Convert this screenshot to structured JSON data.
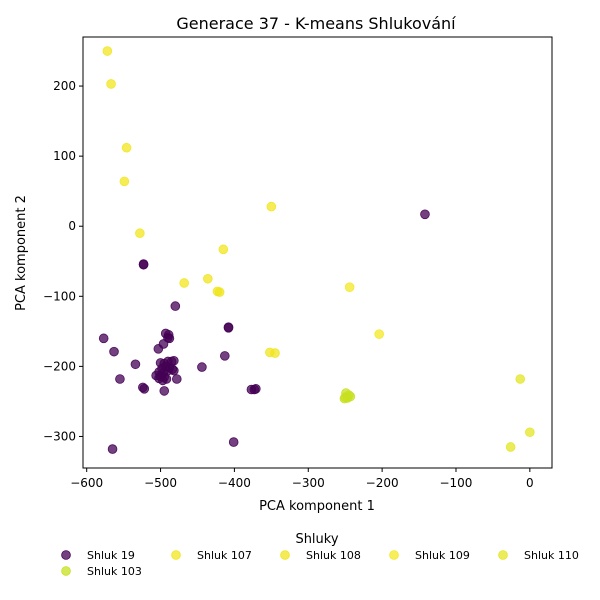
{
  "chart_data": {
    "type": "scatter",
    "title": "Generace 37 - K-means Shlukování",
    "xlabel": "PCA komponent 1",
    "ylabel": "PCA komponent 2",
    "xlim": [
      -605,
      30
    ],
    "ylim": [
      -345,
      270
    ],
    "xticks": [
      -600,
      -500,
      -400,
      -300,
      -200,
      -100,
      0
    ],
    "yticks": [
      -300,
      -200,
      -100,
      0,
      100,
      200
    ],
    "legend_title": "Shluky",
    "legend_position": "bottom",
    "series": [
      {
        "name": "Shluk 19",
        "color": "#440154",
        "points": [
          [
            -523,
            -55
          ],
          [
            -523,
            -54
          ],
          [
            -480,
            -114
          ],
          [
            -408,
            -145
          ],
          [
            -408,
            -144
          ],
          [
            -142,
            17
          ],
          [
            -577,
            -160
          ],
          [
            -563,
            -179
          ],
          [
            -503,
            -175
          ],
          [
            -496,
            -168
          ],
          [
            -493,
            -153
          ],
          [
            -489,
            -155
          ],
          [
            -490,
            -159
          ],
          [
            -488,
            -160
          ],
          [
            -413,
            -185
          ],
          [
            -534,
            -197
          ],
          [
            -555,
            -218
          ],
          [
            -444,
            -201
          ],
          [
            -500,
            -195
          ],
          [
            -495,
            -196
          ],
          [
            -490,
            -193
          ],
          [
            -485,
            -193
          ],
          [
            -482,
            -192
          ],
          [
            -498,
            -203
          ],
          [
            -493,
            -200
          ],
          [
            -488,
            -202
          ],
          [
            -502,
            -208
          ],
          [
            -496,
            -209
          ],
          [
            -490,
            -206
          ],
          [
            -484,
            -204
          ],
          [
            -482,
            -206
          ],
          [
            -506,
            -213
          ],
          [
            -500,
            -214
          ],
          [
            -495,
            -215
          ],
          [
            -492,
            -218
          ],
          [
            -497,
            -220
          ],
          [
            -502,
            -217
          ],
          [
            -478,
            -218
          ],
          [
            -524,
            -230
          ],
          [
            -522,
            -232
          ],
          [
            -495,
            -235
          ],
          [
            -377,
            -233
          ],
          [
            -373,
            -233
          ],
          [
            -371,
            -232
          ],
          [
            -565,
            -318
          ],
          [
            -401,
            -308
          ]
        ]
      },
      {
        "name": "Shluk 107",
        "color": "#f2e61f",
        "points": [
          [
            -572,
            250
          ],
          [
            -567,
            203
          ],
          [
            -546,
            112
          ],
          [
            -549,
            64
          ],
          [
            -528,
            -10
          ],
          [
            -468,
            -81
          ],
          [
            -415,
            -33
          ],
          [
            -350,
            28
          ]
        ]
      },
      {
        "name": "Shluk 108",
        "color": "#f0e41d",
        "points": [
          [
            -436,
            -75
          ],
          [
            -423,
            -93
          ],
          [
            -420,
            -94
          ],
          [
            -352,
            -180
          ],
          [
            -345,
            -181
          ]
        ]
      },
      {
        "name": "Shluk 109",
        "color": "#f4e826",
        "points": [
          [
            -244,
            -87
          ],
          [
            -204,
            -154
          ]
        ]
      },
      {
        "name": "Shluk 110",
        "color": "#e4e524",
        "points": [
          [
            -13,
            -218
          ],
          [
            -26,
            -315
          ],
          [
            0,
            -294
          ]
        ]
      },
      {
        "name": "Shluk 103",
        "color": "#c7e020",
        "points": [
          [
            -249,
            -238
          ],
          [
            -247,
            -245
          ],
          [
            -250,
            -244
          ],
          [
            -245,
            -241
          ],
          [
            -243,
            -243
          ],
          [
            -251,
            -246
          ]
        ]
      }
    ]
  }
}
